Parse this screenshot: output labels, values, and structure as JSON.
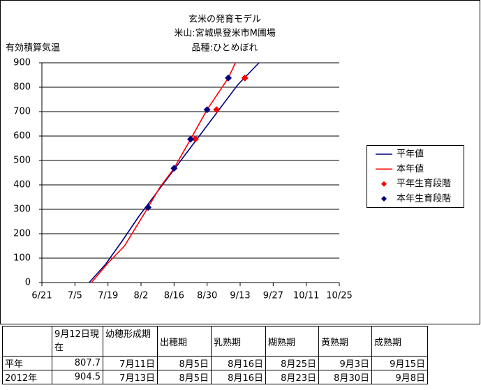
{
  "chart_data": {
    "type": "line",
    "title": [
      "玄米の発育モデル",
      "米山:宮城県登米市M圃場",
      "品種:ひとめぼれ"
    ],
    "y_label": "有効積算気温",
    "xlim": [
      "6/21",
      "10/25"
    ],
    "xticks": [
      "6/21",
      "7/5",
      "7/19",
      "8/2",
      "8/16",
      "8/30",
      "9/13",
      "9/27",
      "10/11",
      "10/25"
    ],
    "ylim": [
      0,
      900
    ],
    "yticks": [
      0,
      100,
      200,
      300,
      400,
      500,
      600,
      700,
      800,
      900
    ],
    "grid": true,
    "legend": "right",
    "series": [
      {
        "name": "平年値",
        "kind": "line",
        "color": "#000080",
        "x": [
          "7/11",
          "7/18",
          "7/25",
          "8/1",
          "8/8",
          "8/15",
          "8/22",
          "8/29",
          "9/5",
          "9/12",
          "9/21"
        ],
        "values": [
          0,
          75,
          170,
          270,
          360,
          450,
          540,
          630,
          720,
          810,
          900
        ]
      },
      {
        "name": "本年値",
        "kind": "line",
        "color": "#ff0000",
        "x": [
          "7/12",
          "7/19",
          "7/26",
          "8/5",
          "8/10",
          "8/16",
          "8/23",
          "8/30",
          "9/8",
          "9/11"
        ],
        "values": [
          0,
          80,
          150,
          308,
          390,
          468,
          587,
          708,
          838,
          900
        ]
      },
      {
        "name": "平年生育段階",
        "kind": "marker",
        "color": "#ff0000",
        "x": [
          "8/25",
          "9/3",
          "9/15"
        ],
        "values": [
          588,
          708,
          838
        ]
      },
      {
        "name": "本年生育段階",
        "kind": "marker",
        "color": "#000080",
        "x": [
          "8/5",
          "8/16",
          "8/23",
          "8/30",
          "9/8"
        ],
        "values": [
          308,
          468,
          587,
          708,
          838
        ]
      }
    ]
  },
  "table": {
    "header": [
      "9月12日現在",
      "幼穂形成期",
      "出穂期",
      "乳熟期",
      "糊熟期",
      "黄熟期",
      "成熟期"
    ],
    "rows": [
      [
        "平年",
        "807.7",
        "7月11日",
        "8月5日",
        "8月16日",
        "8月25日",
        "9月3日",
        "9月15日"
      ],
      [
        "2012年",
        "904.5",
        "7月13日",
        "8月5日",
        "8月16日",
        "8月23日",
        "8月30日",
        "9月8日"
      ]
    ]
  }
}
